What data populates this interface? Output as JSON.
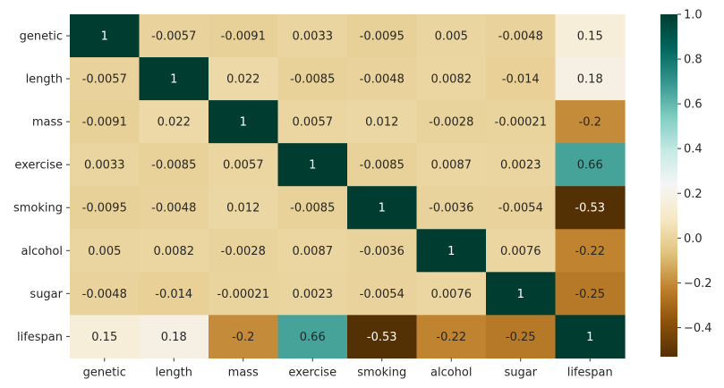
{
  "chart_data": {
    "type": "heatmap",
    "title": "",
    "xlabel": "",
    "ylabel": "",
    "x_categories": [
      "genetic",
      "length",
      "mass",
      "exercise",
      "smoking",
      "alcohol",
      "sugar",
      "lifespan"
    ],
    "y_categories": [
      "genetic",
      "length",
      "mass",
      "exercise",
      "smoking",
      "alcohol",
      "sugar",
      "lifespan"
    ],
    "values": [
      [
        1,
        -0.0057,
        -0.0091,
        0.0033,
        -0.0095,
        0.005,
        -0.0048,
        0.15
      ],
      [
        -0.0057,
        1,
        0.022,
        -0.0085,
        -0.0048,
        0.0082,
        -0.014,
        0.18
      ],
      [
        -0.0091,
        0.022,
        1,
        0.0057,
        0.012,
        -0.0028,
        -0.00021,
        -0.2
      ],
      [
        0.0033,
        -0.0085,
        0.0057,
        1,
        -0.0085,
        0.0087,
        0.0023,
        0.66
      ],
      [
        -0.0095,
        -0.0048,
        0.012,
        -0.0085,
        1,
        -0.0036,
        -0.0054,
        -0.53
      ],
      [
        0.005,
        0.0082,
        -0.0028,
        0.0087,
        -0.0036,
        1,
        0.0076,
        -0.22
      ],
      [
        -0.0048,
        -0.014,
        -0.00021,
        0.0023,
        -0.0054,
        0.0076,
        1,
        -0.25
      ],
      [
        0.15,
        0.18,
        -0.2,
        0.66,
        -0.53,
        -0.22,
        -0.25,
        1
      ]
    ],
    "annotations": [
      [
        "1",
        "-0.0057",
        "-0.0091",
        "0.0033",
        "-0.0095",
        "0.005",
        "-0.0048",
        "0.15"
      ],
      [
        "-0.0057",
        "1",
        "0.022",
        "-0.0085",
        "-0.0048",
        "0.0082",
        "-0.014",
        "0.18"
      ],
      [
        "-0.0091",
        "0.022",
        "1",
        "0.0057",
        "0.012",
        "-0.0028",
        "-0.00021",
        "-0.2"
      ],
      [
        "0.0033",
        "-0.0085",
        "0.0057",
        "1",
        "-0.0085",
        "0.0087",
        "0.0023",
        "0.66"
      ],
      [
        "-0.0095",
        "-0.0048",
        "0.012",
        "-0.0085",
        "1",
        "-0.0036",
        "-0.0054",
        "-0.53"
      ],
      [
        "0.005",
        "0.0082",
        "-0.0028",
        "0.0087",
        "-0.0036",
        "1",
        "0.0076",
        "-0.22"
      ],
      [
        "-0.0048",
        "-0.014",
        "-0.00021",
        "0.0023",
        "-0.0054",
        "0.0076",
        "1",
        "-0.25"
      ],
      [
        "0.15",
        "0.18",
        "-0.2",
        "0.66",
        "-0.53",
        "-0.22",
        "-0.25",
        "1"
      ]
    ],
    "colormap": "BrBG",
    "colorbar": {
      "vmin": -0.53,
      "vmax": 1,
      "ticks": [
        -0.4,
        -0.2,
        0.0,
        0.2,
        0.4,
        0.6,
        0.8,
        1.0
      ],
      "tick_labels": [
        "−0.4",
        "−0.2",
        "0.0",
        "0.2",
        "0.4",
        "0.6",
        "0.8",
        "1.0"
      ],
      "placement": "right"
    },
    "grid": false
  }
}
